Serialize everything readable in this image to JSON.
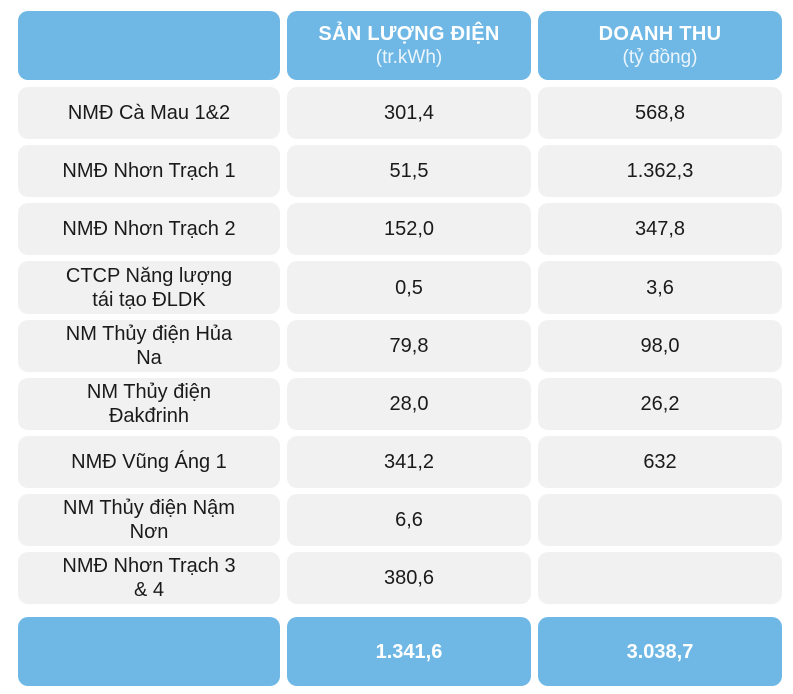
{
  "header": {
    "col1": "",
    "col2": {
      "title": "SẢN LƯỢNG ĐIỆN",
      "unit": "(tr.kWh)"
    },
    "col3": {
      "title": "DOANH THU",
      "unit": "(tỷ đồng)"
    }
  },
  "rows": [
    {
      "name": "NMĐ Cà Mau 1&2",
      "output": "301,4",
      "revenue": "568,8"
    },
    {
      "name": "NMĐ Nhơn Trạch 1",
      "output": "51,5",
      "revenue": "1.362,3"
    },
    {
      "name": "NMĐ Nhơn Trạch 2",
      "output": "152,0",
      "revenue": "347,8"
    },
    {
      "name": "CTCP Năng lượng tái tạo ĐLDK",
      "output": "0,5",
      "revenue": "3,6"
    },
    {
      "name": "NM Thủy điện Hủa Na",
      "output": "79,8",
      "revenue": "98,0"
    },
    {
      "name": "NM Thủy điện Đakđrinh",
      "output": "28,0",
      "revenue": "26,2"
    },
    {
      "name": "NMĐ Vũng Áng 1",
      "output": "341,2",
      "revenue": "632"
    },
    {
      "name": "NM Thủy điện Nậm Nơn",
      "output": "6,6",
      "revenue": ""
    },
    {
      "name": "NMĐ Nhơn Trạch 3 & 4",
      "output": "380,6",
      "revenue": ""
    }
  ],
  "footer": {
    "col1": "",
    "output_total": "1.341,6",
    "revenue_total": "3.038,7"
  },
  "colors": {
    "header_blue": "#6fb8e6",
    "row_gray": "#f1f1f1"
  }
}
